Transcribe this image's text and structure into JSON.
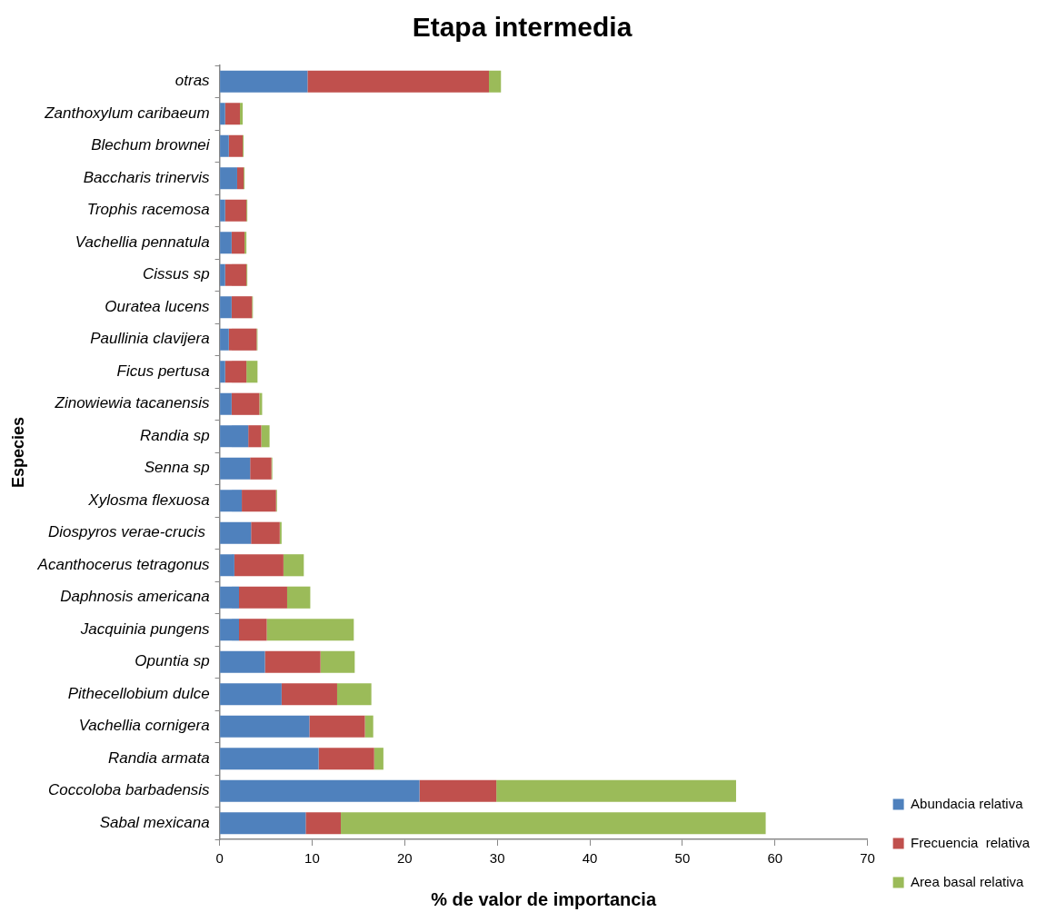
{
  "chart_data": {
    "type": "bar",
    "orientation": "horizontal",
    "stacked": true,
    "title": "Etapa intermedia",
    "xlabel": "% de valor de importancia",
    "ylabel": "Especies",
    "categories": [
      "otras",
      "Zanthoxylum caribaeum",
      "Blechum brownei",
      "Baccharis trinervis",
      "Trophis racemosa",
      "Vachellia pennatula",
      "Cissus sp",
      "Ouratea lucens",
      "Paullinia clavijera",
      "Ficus pertusa",
      "Zinowiewia tacanensis",
      "Randia sp",
      "Senna sp",
      "Xylosma flexuosa",
      "Diospyros verae-crucis ",
      "Acanthocerus tetragonus",
      "Daphnosis americana",
      "Jacquinia pungens",
      "Opuntia sp",
      "Pithecellobium dulce",
      "Vachellia cornigera",
      "Randia armata",
      "Coccoloba barbadensis",
      "Sabal mexicana"
    ],
    "series": [
      {
        "name": "Abundacia relativa",
        "color": "#4f81bd",
        "values": [
          9.5,
          0.6,
          1.0,
          1.9,
          0.6,
          1.3,
          0.6,
          1.3,
          1.0,
          0.6,
          1.3,
          3.1,
          3.3,
          2.4,
          3.4,
          1.6,
          2.1,
          2.1,
          4.9,
          6.7,
          9.7,
          10.7,
          21.6,
          9.3
        ]
      },
      {
        "name": "Frecuencia  relativa",
        "color": "#c0504d",
        "values": [
          19.6,
          1.6,
          1.5,
          0.7,
          2.3,
          1.4,
          2.3,
          2.2,
          3.0,
          2.3,
          3.0,
          1.4,
          2.3,
          3.7,
          3.1,
          5.3,
          5.2,
          3.0,
          6.0,
          6.0,
          6.0,
          6.0,
          8.3,
          3.8
        ]
      },
      {
        "name": "Area basal relativa",
        "color": "#9bbb59",
        "values": [
          1.3,
          0.3,
          0.1,
          0.1,
          0.1,
          0.2,
          0.1,
          0.1,
          0.1,
          1.2,
          0.3,
          0.9,
          0.1,
          0.1,
          0.2,
          2.2,
          2.5,
          9.4,
          3.7,
          3.7,
          0.9,
          1.0,
          25.9,
          45.9
        ]
      }
    ],
    "xlim": [
      0,
      70
    ],
    "xticks": [
      0,
      10,
      20,
      30,
      40,
      50,
      60,
      70
    ],
    "legend": "bottom right"
  }
}
